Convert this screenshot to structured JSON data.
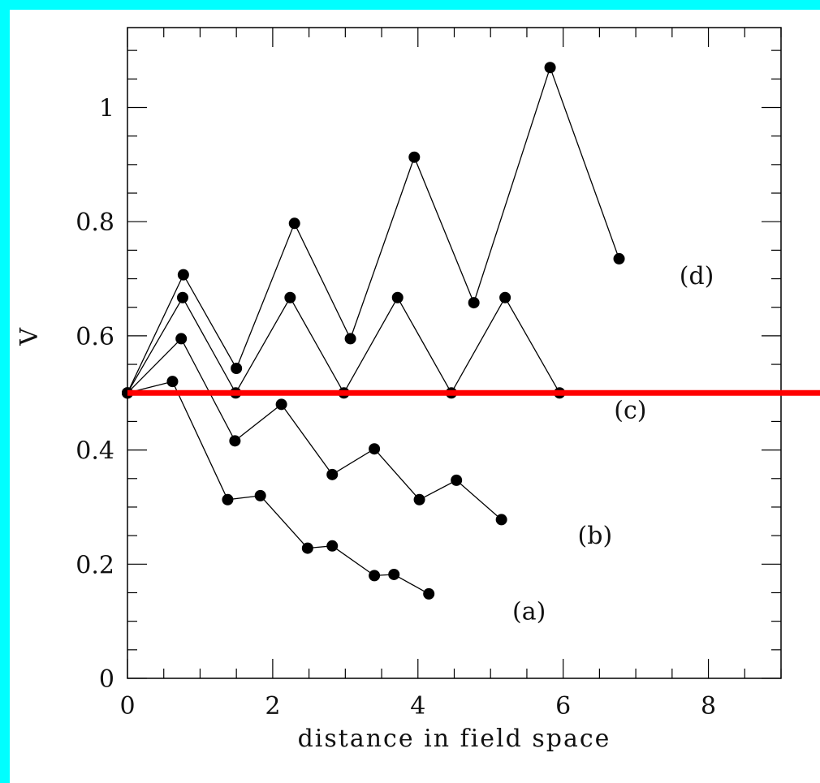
{
  "chart_data": {
    "type": "line",
    "xlabel": "distance in field space",
    "ylabel": "V",
    "xlim": [
      0,
      9
    ],
    "ylim": [
      0,
      1.14
    ],
    "x_ticks": [
      0,
      2,
      4,
      6,
      8
    ],
    "y_ticks": [
      0,
      0.2,
      0.4,
      0.6,
      0.8,
      1
    ],
    "x_tick_labels": [
      "0",
      "2",
      "4",
      "6",
      "8"
    ],
    "y_tick_labels": [
      "0",
      "0.2",
      "0.4",
      "0.6",
      "0.8",
      "1"
    ],
    "grid": false,
    "series": [
      {
        "label": "(a)",
        "points": [
          [
            0,
            0.5
          ],
          [
            0.62,
            0.52
          ],
          [
            1.38,
            0.313
          ],
          [
            1.83,
            0.32
          ],
          [
            2.48,
            0.228
          ],
          [
            2.82,
            0.232
          ],
          [
            3.4,
            0.18
          ],
          [
            3.67,
            0.182
          ],
          [
            4.15,
            0.148
          ]
        ],
        "label_pos": [
          5.3,
          0.117
        ]
      },
      {
        "label": "(b)",
        "points": [
          [
            0,
            0.5
          ],
          [
            0.74,
            0.595
          ],
          [
            1.48,
            0.416
          ],
          [
            2.12,
            0.48
          ],
          [
            2.82,
            0.357
          ],
          [
            3.4,
            0.402
          ],
          [
            4.02,
            0.313
          ],
          [
            4.53,
            0.347
          ],
          [
            5.15,
            0.278
          ]
        ],
        "label_pos": [
          6.2,
          0.25
        ]
      },
      {
        "label": "(c)",
        "points": [
          [
            0,
            0.5
          ],
          [
            0.76,
            0.667
          ],
          [
            1.49,
            0.5
          ],
          [
            2.24,
            0.667
          ],
          [
            2.98,
            0.5
          ],
          [
            3.72,
            0.667
          ],
          [
            4.46,
            0.5
          ],
          [
            5.2,
            0.667
          ],
          [
            5.95,
            0.5
          ]
        ],
        "label_pos": [
          6.7,
          0.47
        ]
      },
      {
        "label": "(d)",
        "points": [
          [
            0,
            0.5
          ],
          [
            0.77,
            0.707
          ],
          [
            1.5,
            0.543
          ],
          [
            2.3,
            0.797
          ],
          [
            3.07,
            0.595
          ],
          [
            3.95,
            0.913
          ],
          [
            4.77,
            0.658
          ],
          [
            5.82,
            1.07
          ],
          [
            6.77,
            0.735
          ]
        ],
        "label_pos": [
          7.6,
          0.705
        ]
      }
    ],
    "reference_line": {
      "y": 0.5,
      "color": "#ff0000"
    },
    "colors": {
      "line": "#000000",
      "marker": "#000000",
      "frame_border": "#00ffff"
    }
  }
}
